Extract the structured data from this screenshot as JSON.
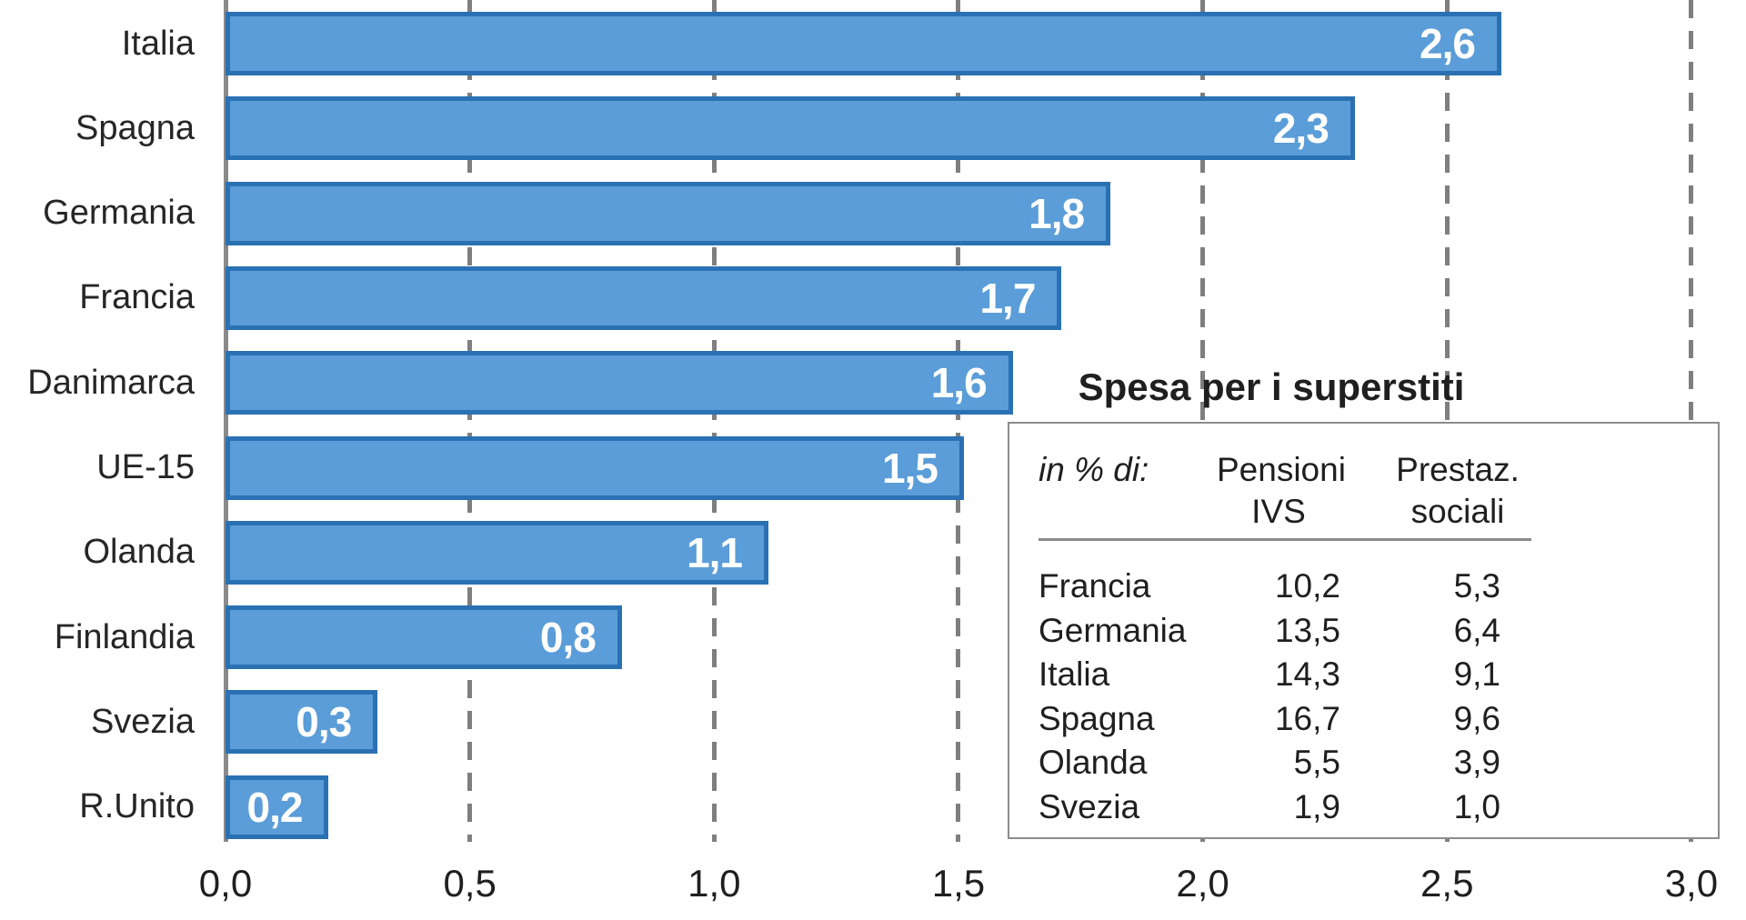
{
  "chart_data": {
    "type": "bar",
    "orientation": "horizontal",
    "title": "",
    "categories": [
      "Italia",
      "Spagna",
      "Germania",
      "Francia",
      "Danimarca",
      "UE-15",
      "Olanda",
      "Finlandia",
      "Svezia",
      "R.Unito"
    ],
    "values": [
      2.6,
      2.3,
      1.8,
      1.7,
      1.6,
      1.5,
      1.1,
      0.8,
      0.3,
      0.2
    ],
    "value_labels": [
      "2,6",
      "2,3",
      "1,8",
      "1,7",
      "1,6",
      "1,5",
      "1,1",
      "0,8",
      "0,3",
      "0,2"
    ],
    "xlabel": "",
    "ylabel": "",
    "xlim": [
      0.0,
      3.0
    ],
    "xtick_labels": [
      "0,0",
      "0,5",
      "1,0",
      "1,5",
      "2,0",
      "2,5",
      "3,0"
    ],
    "xtick_values": [
      0.0,
      0.5,
      1.0,
      1.5,
      2.0,
      2.5,
      3.0
    ],
    "grid": "vertical-dashed",
    "legend": "none",
    "colors": {
      "bar_fill": "#5b9dd8",
      "bar_border": "#2a71b4",
      "gridline": "#7f7f7f",
      "axis_line": "#8a8a8a",
      "text": "#262626",
      "value_label_text": "#ffffff"
    },
    "inset_table": {
      "title": "Spesa per i superstiti",
      "col1_header": "in % di:",
      "col2_header": {
        "line1": "Pensioni",
        "line2": "IVS"
      },
      "col3_header": {
        "line1": "Prestaz.",
        "line2": "sociali"
      },
      "rows": [
        {
          "label": "Francia",
          "ivs": "10,2",
          "sociali": "5,3"
        },
        {
          "label": "Germania",
          "ivs": "13,5",
          "sociali": "6,4"
        },
        {
          "label": "Italia",
          "ivs": "14,3",
          "sociali": "9,1"
        },
        {
          "label": "Spagna",
          "ivs": "16,7",
          "sociali": "9,6"
        },
        {
          "label": "Olanda",
          "ivs": "5,5",
          "sociali": "3,9"
        },
        {
          "label": "Svezia",
          "ivs": "1,9",
          "sociali": "1,0"
        }
      ]
    }
  }
}
